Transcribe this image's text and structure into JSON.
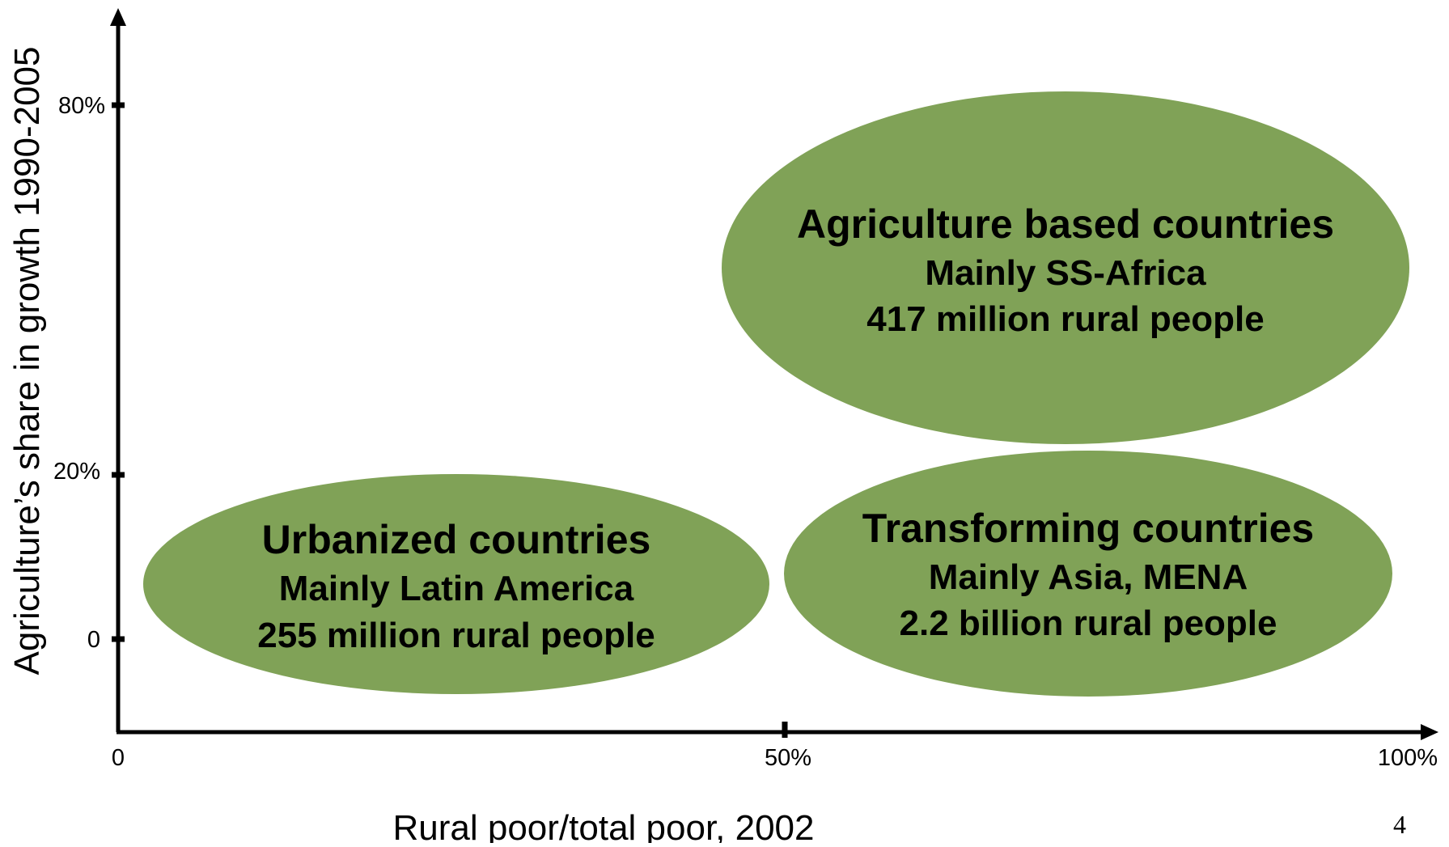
{
  "axes": {
    "y_label": "Agriculture’s share in growth 1990-2005",
    "x_label": "Rural poor/total poor, 2002",
    "y_ticks": [
      "80%",
      "20%",
      "0"
    ],
    "x_ticks": [
      "0",
      "50%",
      "100%"
    ]
  },
  "groups": [
    {
      "title": "Agriculture based countries",
      "region": "Mainly SS-Africa",
      "population": "417 million rural people"
    },
    {
      "title": "Urbanized countries",
      "region": "Mainly Latin America",
      "population": "255 million rural people"
    },
    {
      "title": "Transforming countries",
      "region": "Mainly Asia, MENA",
      "population": "2.2 billion rural people"
    }
  ],
  "page_number": "4",
  "colors": {
    "bubble_fill": "#80A257",
    "axis": "#000000",
    "text": "#000000"
  }
}
